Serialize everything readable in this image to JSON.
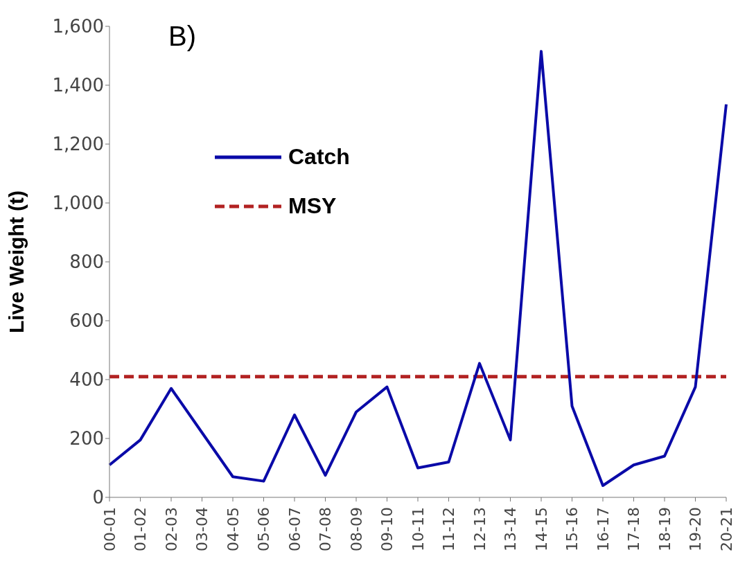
{
  "chart_data": {
    "type": "line",
    "title": "B)",
    "ylabel": "Live Weight (t)",
    "categories": [
      "00-01",
      "01-02",
      "02-03",
      "03-04",
      "04-05",
      "05-06",
      "06-07",
      "07-08",
      "08-09",
      "09-10",
      "10-11",
      "11-12",
      "12-13",
      "13-14",
      "14-15",
      "15-16",
      "16-17",
      "17-18",
      "18-19",
      "19-20",
      "20-21"
    ],
    "series": [
      {
        "name": "Catch",
        "color": "#0a0aa8",
        "values": [
          110,
          195,
          370,
          220,
          70,
          55,
          280,
          75,
          290,
          375,
          100,
          120,
          455,
          195,
          1515,
          310,
          40,
          110,
          140,
          375,
          1335
        ]
      }
    ],
    "ref_lines": [
      {
        "axis": "y",
        "value": 410,
        "label": "MSY",
        "color": "#b22222",
        "line_style": "dashed"
      }
    ],
    "ylim": [
      0,
      1600
    ],
    "yticks": [
      {
        "value": 0,
        "label": "0"
      },
      {
        "value": 200,
        "label": "200"
      },
      {
        "value": 400,
        "label": "400"
      },
      {
        "value": 600,
        "label": "600"
      },
      {
        "value": 800,
        "label": "800"
      },
      {
        "value": 1000,
        "label": "1,000"
      },
      {
        "value": 1200,
        "label": "1,200"
      },
      {
        "value": 1400,
        "label": "1,400"
      },
      {
        "value": 1600,
        "label": "1,600"
      }
    ],
    "grid": false,
    "legend": "top left",
    "marker": "none",
    "line_style": "solid"
  }
}
